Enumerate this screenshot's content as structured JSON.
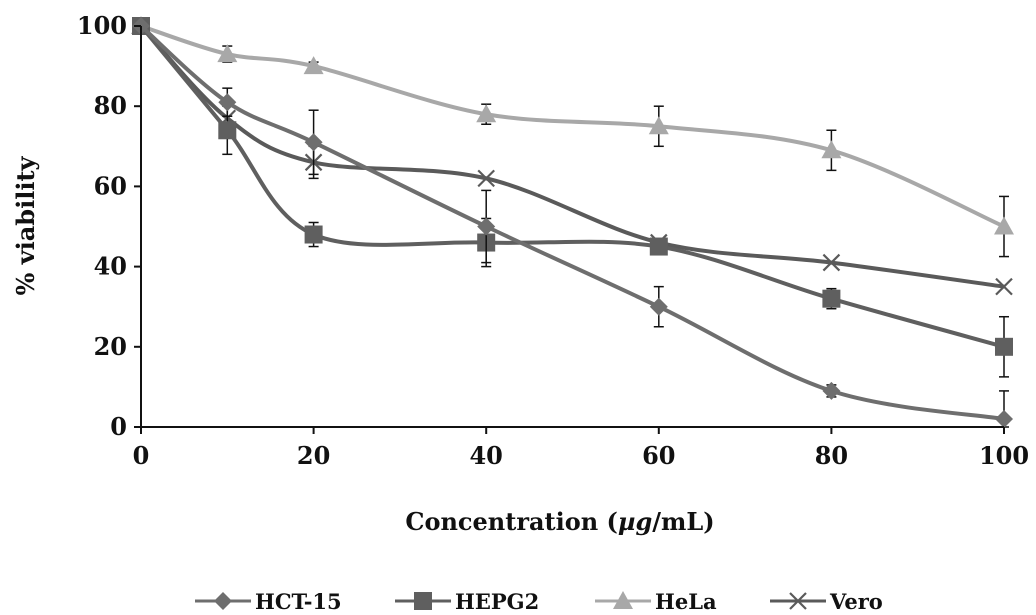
{
  "chart_data": {
    "type": "line",
    "xlabel": "Concentration (",
    "xlabel_unit": "µg",
    "xlabel_end": "/mL)",
    "ylabel": "% viability",
    "xlim": [
      0,
      100
    ],
    "ylim": [
      0,
      100
    ],
    "x_ticks": [
      "0",
      "20",
      "40",
      "60",
      "80",
      "100"
    ],
    "y_ticks": [
      "0",
      "20",
      "40",
      "60",
      "80",
      "100"
    ],
    "x_tick_values": [
      0,
      20,
      40,
      60,
      80,
      100
    ],
    "y_tick_values": [
      0,
      20,
      40,
      60,
      80,
      100
    ],
    "grid": false,
    "legend_position": "bottom",
    "x": [
      0,
      10,
      20,
      40,
      60,
      80,
      100
    ],
    "series": [
      {
        "name": "HCT-15",
        "marker": "diamond",
        "color": "#6e6e6e",
        "values": [
          100,
          81,
          71,
          50,
          30,
          9,
          2
        ],
        "errors": [
          0,
          3.5,
          8,
          9,
          5,
          1.5,
          7
        ]
      },
      {
        "name": "HEPG2",
        "marker": "square",
        "color": "#5f5f5f",
        "values": [
          100,
          74,
          48,
          46,
          45,
          32,
          20
        ],
        "errors": [
          0,
          6,
          3,
          6,
          1.5,
          2.5,
          7.5
        ]
      },
      {
        "name": "HeLa",
        "marker": "triangle",
        "color": "#a8a8a8",
        "values": [
          100,
          93,
          90,
          78,
          75,
          69,
          50
        ],
        "errors": [
          0,
          2,
          1,
          2.5,
          5,
          5,
          7.5
        ]
      },
      {
        "name": "Vero",
        "marker": "x",
        "color": "#5a5a5a",
        "values": [
          100,
          77,
          66,
          62,
          46,
          41,
          35
        ],
        "errors": [
          0,
          0,
          4,
          0,
          0,
          0,
          0
        ]
      }
    ]
  }
}
